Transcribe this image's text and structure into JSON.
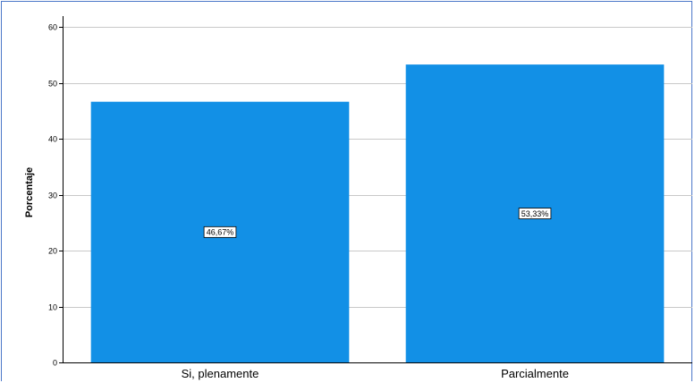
{
  "chart_data": {
    "type": "bar",
    "categories": [
      "Si, plenamente",
      "Parcialmente"
    ],
    "values": [
      46.67,
      53.33
    ],
    "data_labels": [
      "46,67%",
      "53,33%"
    ],
    "title": "",
    "xlabel": "",
    "ylabel": "Porcentaje",
    "ylim": [
      0,
      62
    ],
    "yticks": [
      0,
      10,
      20,
      30,
      40,
      50,
      60
    ],
    "grid": true,
    "bar_color": "#1290e6",
    "legend": "none"
  }
}
